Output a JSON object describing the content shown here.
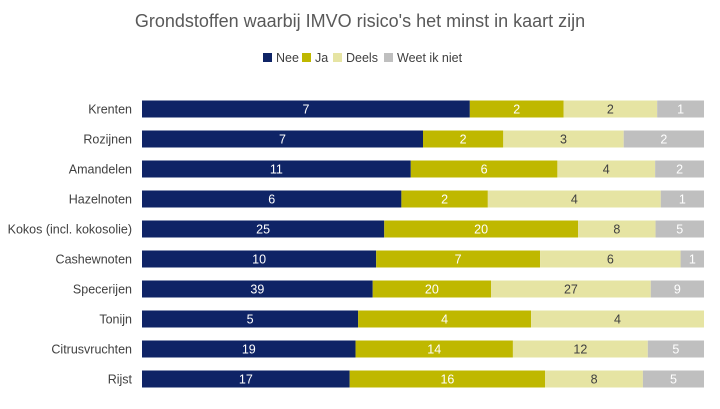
{
  "chart_data": {
    "type": "bar",
    "stacked": true,
    "normalized": true,
    "orientation": "horizontal",
    "title": "Grondstoffen waarbij IMVO risico's het minst in kaart zijn",
    "legend_position": "top",
    "grid": false,
    "categories": [
      "Krenten",
      "Rozijnen",
      "Amandelen",
      "Hazelnoten",
      "Kokos (incl. kokosolie)",
      "Cashewnoten",
      "Specerijen",
      "Tonijn",
      "Citrusvruchten",
      "Rijst"
    ],
    "series": [
      {
        "name": "Nee",
        "color": "#0f2466",
        "label_color": "#ffffff",
        "values": [
          7,
          7,
          11,
          6,
          25,
          10,
          39,
          5,
          19,
          17
        ]
      },
      {
        "name": "Ja",
        "color": "#bfb800",
        "label_color": "#ffffff",
        "values": [
          2,
          2,
          6,
          2,
          20,
          7,
          20,
          4,
          14,
          16
        ]
      },
      {
        "name": "Deels",
        "color": "#e6e4a3",
        "label_color": "#404040",
        "values": [
          2,
          3,
          4,
          4,
          8,
          6,
          27,
          4,
          12,
          8
        ]
      },
      {
        "name": "Weet ik niet",
        "color": "#bfbfbf",
        "label_color": "#ffffff",
        "values": [
          1,
          2,
          2,
          1,
          5,
          1,
          9,
          0,
          5,
          5
        ]
      }
    ]
  }
}
